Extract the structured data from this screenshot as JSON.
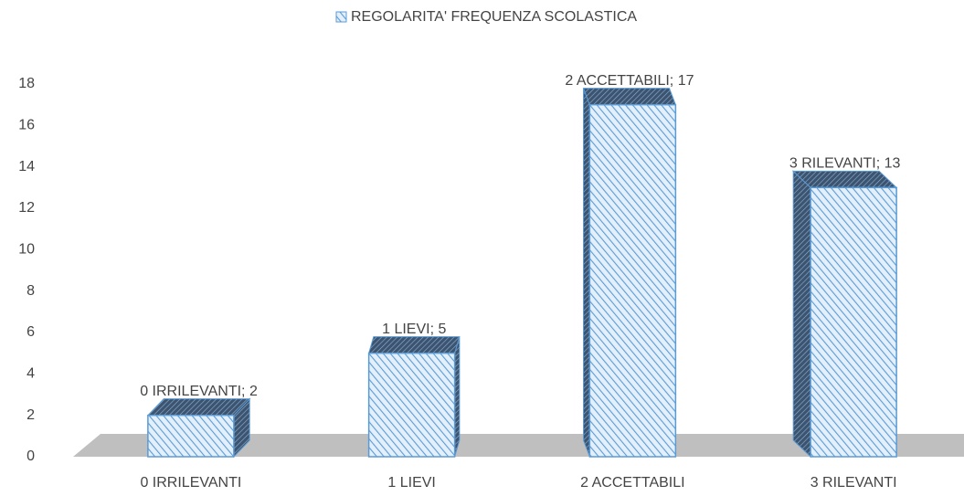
{
  "chart_data": {
    "type": "bar",
    "categories": [
      "0 IRRILEVANTI",
      "1 LIEVI",
      "2 ACCETTABILI",
      "3 RILEVANTI"
    ],
    "series": [
      {
        "name": "REGOLARITA' FREQUENZA SCOLASTICA",
        "color": "#5b9bd5",
        "values": [
          2,
          5,
          17,
          13
        ],
        "value_labels": [
          "0 IRRILEVANTI; 2",
          "1 LIEVI; 5",
          "2 ACCETTABILI; 17",
          "3 RILEVANTI; 13"
        ]
      }
    ],
    "ylim": [
      0,
      18
    ],
    "yticks": [
      0,
      2,
      4,
      6,
      8,
      10,
      12,
      14,
      16,
      18
    ],
    "grid": false,
    "legend": "top"
  }
}
